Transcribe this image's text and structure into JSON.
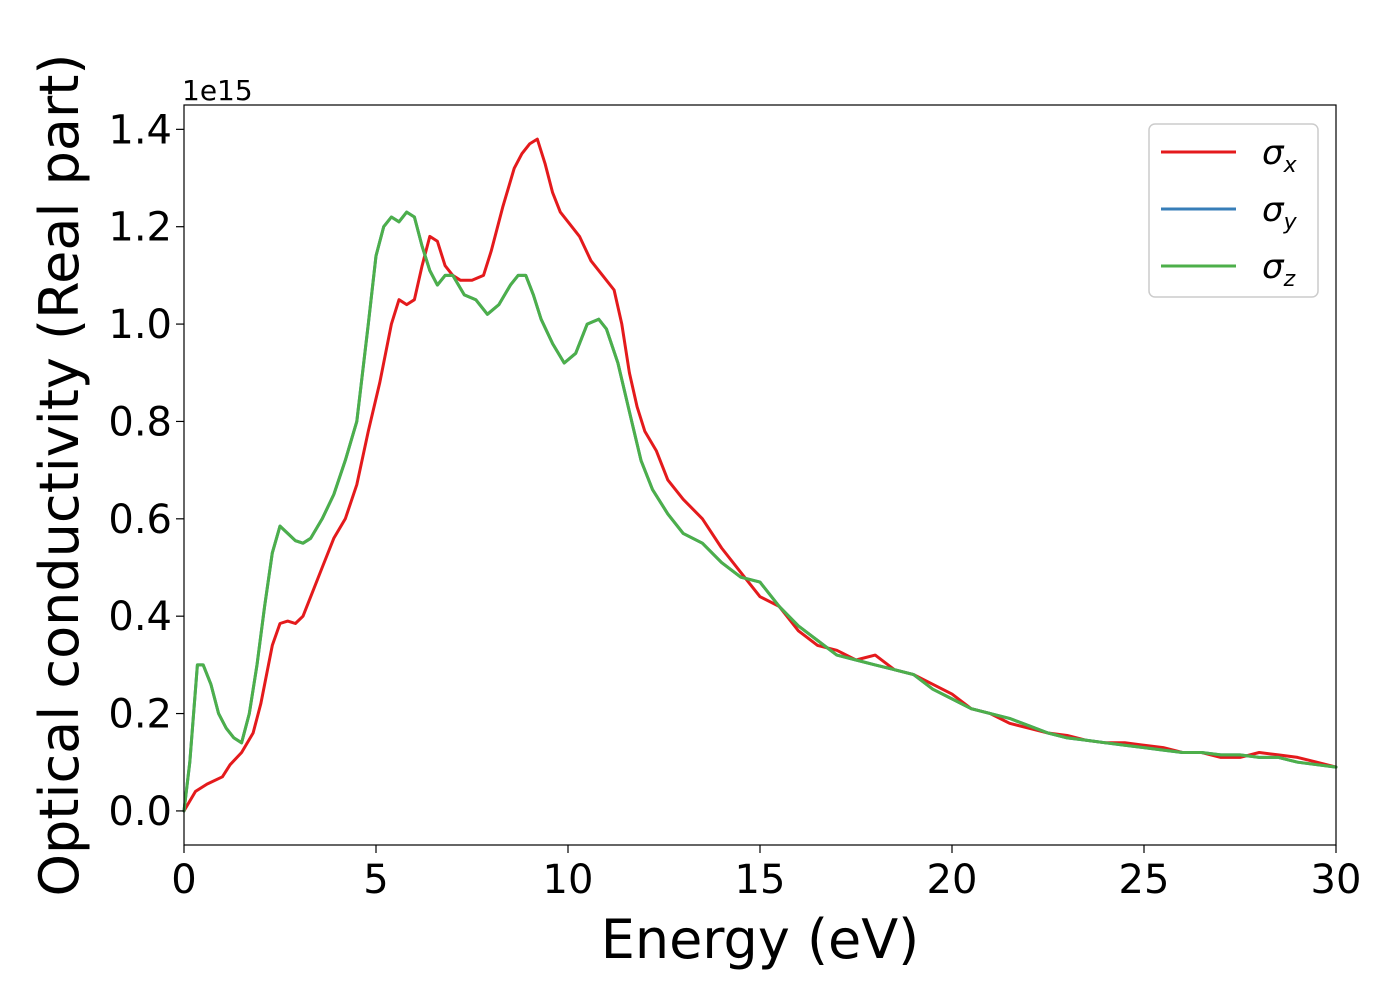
{
  "chart_data": {
    "type": "line",
    "title": "",
    "xlabel": "Energy (eV)",
    "ylabel": "Optical conductivity (Real part)",
    "y_offset_label": "1e15",
    "y_scale": 1000000000000000.0,
    "xlim": [
      0,
      30
    ],
    "ylim": [
      -0.07,
      1.45
    ],
    "xticks": [
      0,
      5,
      10,
      15,
      20,
      25,
      30
    ],
    "xtick_labels": [
      "0",
      "5",
      "10",
      "15",
      "20",
      "25",
      "30"
    ],
    "yticks": [
      0.0,
      0.2,
      0.4,
      0.6,
      0.8,
      1.0,
      1.2,
      1.4
    ],
    "ytick_labels": [
      "0.0",
      "0.2",
      "0.4",
      "0.6",
      "0.8",
      "1.0",
      "1.2",
      "1.4"
    ],
    "grid": false,
    "legend_position": "top-right",
    "series": [
      {
        "name": "σ",
        "subscript": "x",
        "color": "#e41a1c",
        "x": [
          0,
          0.3,
          0.6,
          1.0,
          1.2,
          1.5,
          1.8,
          2.0,
          2.3,
          2.5,
          2.7,
          2.9,
          3.1,
          3.3,
          3.6,
          3.9,
          4.2,
          4.5,
          4.8,
          5.1,
          5.4,
          5.6,
          5.8,
          6.0,
          6.2,
          6.4,
          6.6,
          6.8,
          7.0,
          7.2,
          7.5,
          7.8,
          8.0,
          8.3,
          8.6,
          8.8,
          9.0,
          9.2,
          9.4,
          9.6,
          9.8,
          10.0,
          10.3,
          10.6,
          10.9,
          11.2,
          11.4,
          11.6,
          11.8,
          12.0,
          12.3,
          12.6,
          13.0,
          13.5,
          14.0,
          14.5,
          15.0,
          15.5,
          16.0,
          16.5,
          17.0,
          17.5,
          18.0,
          18.5,
          19.0,
          19.5,
          20.0,
          20.5,
          21.0,
          21.5,
          22.0,
          22.5,
          23.0,
          23.5,
          24.0,
          24.5,
          25.0,
          25.5,
          26.0,
          26.5,
          27.0,
          27.5,
          28.0,
          28.5,
          29.0,
          29.5,
          30.0
        ],
        "values": [
          0.0,
          0.04,
          0.055,
          0.07,
          0.095,
          0.12,
          0.16,
          0.22,
          0.34,
          0.385,
          0.39,
          0.385,
          0.4,
          0.44,
          0.5,
          0.56,
          0.6,
          0.67,
          0.78,
          0.88,
          1.0,
          1.05,
          1.04,
          1.05,
          1.12,
          1.18,
          1.17,
          1.12,
          1.1,
          1.09,
          1.09,
          1.1,
          1.15,
          1.24,
          1.32,
          1.35,
          1.37,
          1.38,
          1.33,
          1.27,
          1.23,
          1.21,
          1.18,
          1.13,
          1.1,
          1.07,
          1.0,
          0.9,
          0.83,
          0.78,
          0.74,
          0.68,
          0.64,
          0.6,
          0.54,
          0.49,
          0.44,
          0.42,
          0.37,
          0.34,
          0.33,
          0.31,
          0.32,
          0.29,
          0.28,
          0.26,
          0.24,
          0.21,
          0.2,
          0.18,
          0.17,
          0.16,
          0.155,
          0.145,
          0.14,
          0.14,
          0.135,
          0.13,
          0.12,
          0.12,
          0.11,
          0.11,
          0.12,
          0.115,
          0.11,
          0.1,
          0.09
        ]
      },
      {
        "name": "σ",
        "subscript": "y",
        "color": "#377eb8",
        "x": [
          0,
          0.15,
          0.35,
          0.5,
          0.7,
          0.9,
          1.1,
          1.3,
          1.5,
          1.7,
          1.9,
          2.1,
          2.3,
          2.5,
          2.7,
          2.9,
          3.1,
          3.3,
          3.6,
          3.9,
          4.2,
          4.5,
          4.8,
          5.0,
          5.2,
          5.4,
          5.6,
          5.8,
          6.0,
          6.2,
          6.4,
          6.6,
          6.8,
          7.0,
          7.3,
          7.6,
          7.9,
          8.2,
          8.5,
          8.7,
          8.9,
          9.1,
          9.3,
          9.6,
          9.9,
          10.2,
          10.5,
          10.8,
          11.0,
          11.3,
          11.6,
          11.9,
          12.2,
          12.6,
          13.0,
          13.5,
          14.0,
          14.5,
          15.0,
          15.5,
          16.0,
          16.5,
          17.0,
          17.5,
          18.0,
          18.5,
          19.0,
          19.5,
          20.0,
          20.5,
          21.0,
          21.5,
          22.0,
          22.5,
          23.0,
          23.5,
          24.0,
          24.5,
          25.0,
          25.5,
          26.0,
          26.5,
          27.0,
          27.5,
          28.0,
          28.5,
          29.0,
          29.5,
          30.0
        ],
        "values": [
          0.0,
          0.1,
          0.3,
          0.3,
          0.26,
          0.2,
          0.17,
          0.15,
          0.14,
          0.2,
          0.3,
          0.42,
          0.53,
          0.585,
          0.57,
          0.555,
          0.55,
          0.56,
          0.6,
          0.65,
          0.72,
          0.8,
          1.0,
          1.14,
          1.2,
          1.22,
          1.21,
          1.23,
          1.22,
          1.16,
          1.11,
          1.08,
          1.1,
          1.1,
          1.06,
          1.05,
          1.02,
          1.04,
          1.08,
          1.1,
          1.1,
          1.06,
          1.01,
          0.96,
          0.92,
          0.94,
          1.0,
          1.01,
          0.99,
          0.92,
          0.82,
          0.72,
          0.66,
          0.61,
          0.57,
          0.55,
          0.51,
          0.48,
          0.47,
          0.42,
          0.38,
          0.35,
          0.32,
          0.31,
          0.3,
          0.29,
          0.28,
          0.25,
          0.23,
          0.21,
          0.2,
          0.19,
          0.175,
          0.16,
          0.15,
          0.145,
          0.14,
          0.135,
          0.13,
          0.125,
          0.12,
          0.12,
          0.115,
          0.115,
          0.11,
          0.11,
          0.1,
          0.095,
          0.09
        ]
      },
      {
        "name": "σ",
        "subscript": "z",
        "color": "#4daf4a",
        "x": [
          0,
          0.15,
          0.35,
          0.5,
          0.7,
          0.9,
          1.1,
          1.3,
          1.5,
          1.7,
          1.9,
          2.1,
          2.3,
          2.5,
          2.7,
          2.9,
          3.1,
          3.3,
          3.6,
          3.9,
          4.2,
          4.5,
          4.8,
          5.0,
          5.2,
          5.4,
          5.6,
          5.8,
          6.0,
          6.2,
          6.4,
          6.6,
          6.8,
          7.0,
          7.3,
          7.6,
          7.9,
          8.2,
          8.5,
          8.7,
          8.9,
          9.1,
          9.3,
          9.6,
          9.9,
          10.2,
          10.5,
          10.8,
          11.0,
          11.3,
          11.6,
          11.9,
          12.2,
          12.6,
          13.0,
          13.5,
          14.0,
          14.5,
          15.0,
          15.5,
          16.0,
          16.5,
          17.0,
          17.5,
          18.0,
          18.5,
          19.0,
          19.5,
          20.0,
          20.5,
          21.0,
          21.5,
          22.0,
          22.5,
          23.0,
          23.5,
          24.0,
          24.5,
          25.0,
          25.5,
          26.0,
          26.5,
          27.0,
          27.5,
          28.0,
          28.5,
          29.0,
          29.5,
          30.0
        ],
        "values": [
          0.0,
          0.1,
          0.3,
          0.3,
          0.26,
          0.2,
          0.17,
          0.15,
          0.14,
          0.2,
          0.3,
          0.42,
          0.53,
          0.585,
          0.57,
          0.555,
          0.55,
          0.56,
          0.6,
          0.65,
          0.72,
          0.8,
          1.0,
          1.14,
          1.2,
          1.22,
          1.21,
          1.23,
          1.22,
          1.16,
          1.11,
          1.08,
          1.1,
          1.1,
          1.06,
          1.05,
          1.02,
          1.04,
          1.08,
          1.1,
          1.1,
          1.06,
          1.01,
          0.96,
          0.92,
          0.94,
          1.0,
          1.01,
          0.99,
          0.92,
          0.82,
          0.72,
          0.66,
          0.61,
          0.57,
          0.55,
          0.51,
          0.48,
          0.47,
          0.42,
          0.38,
          0.35,
          0.32,
          0.31,
          0.3,
          0.29,
          0.28,
          0.25,
          0.23,
          0.21,
          0.2,
          0.19,
          0.175,
          0.16,
          0.15,
          0.145,
          0.14,
          0.135,
          0.13,
          0.125,
          0.12,
          0.12,
          0.115,
          0.115,
          0.11,
          0.11,
          0.1,
          0.095,
          0.09
        ]
      }
    ]
  }
}
